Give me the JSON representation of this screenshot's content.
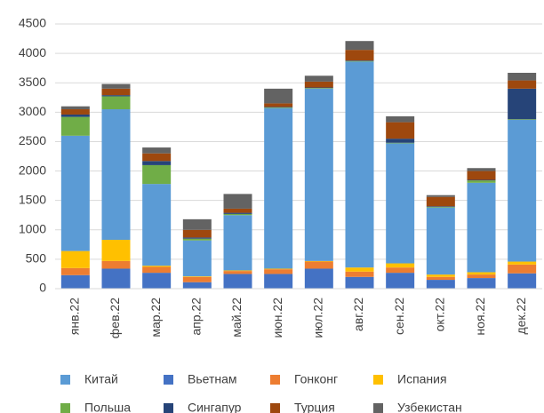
{
  "chart_data": {
    "type": "stacked_bar",
    "categories": [
      "янв.22",
      "фев.22",
      "мар.22",
      "апр.22",
      "май.22",
      "июн.22",
      "июл.22",
      "авг.22",
      "сен.22",
      "окт.22",
      "ноя.22",
      "дек.22"
    ],
    "series": [
      {
        "name": "Китай",
        "color": "#5b9bd5",
        "values": [
          1960,
          2220,
          1390,
          610,
          940,
          2730,
          2930,
          3500,
          2040,
          1140,
          1520,
          2410
        ]
      },
      {
        "name": "Вьетнам",
        "color": "#4472c4",
        "values": [
          230,
          340,
          270,
          110,
          250,
          250,
          340,
          200,
          270,
          150,
          180,
          260
        ]
      },
      {
        "name": "Гонконг",
        "color": "#ed7d31",
        "values": [
          120,
          130,
          100,
          90,
          50,
          80,
          120,
          90,
          90,
          50,
          60,
          150
        ]
      },
      {
        "name": "Испания",
        "color": "#ffc000",
        "values": [
          290,
          360,
          20,
          10,
          10,
          10,
          10,
          70,
          70,
          40,
          40,
          50
        ]
      },
      {
        "name": "Польша",
        "color": "#70ad47",
        "values": [
          320,
          220,
          320,
          30,
          20,
          10,
          10,
          10,
          10,
          10,
          40,
          10
        ]
      },
      {
        "name": "Сингапур",
        "color": "#264478",
        "values": [
          40,
          20,
          70,
          20,
          20,
          10,
          10,
          10,
          70,
          10,
          10,
          520
        ]
      },
      {
        "name": "Турция",
        "color": "#9e480e",
        "values": [
          90,
          110,
          130,
          130,
          70,
          60,
          100,
          180,
          280,
          160,
          150,
          140
        ]
      },
      {
        "name": "Узбекистан",
        "color": "#636363",
        "values": [
          50,
          80,
          100,
          180,
          250,
          250,
          100,
          150,
          100,
          30,
          50,
          130
        ]
      }
    ],
    "ylim": [
      0,
      4500
    ],
    "yticks": [
      0,
      500,
      1000,
      1500,
      2000,
      2500,
      3000,
      3500,
      4000,
      4500
    ],
    "grid": true
  }
}
